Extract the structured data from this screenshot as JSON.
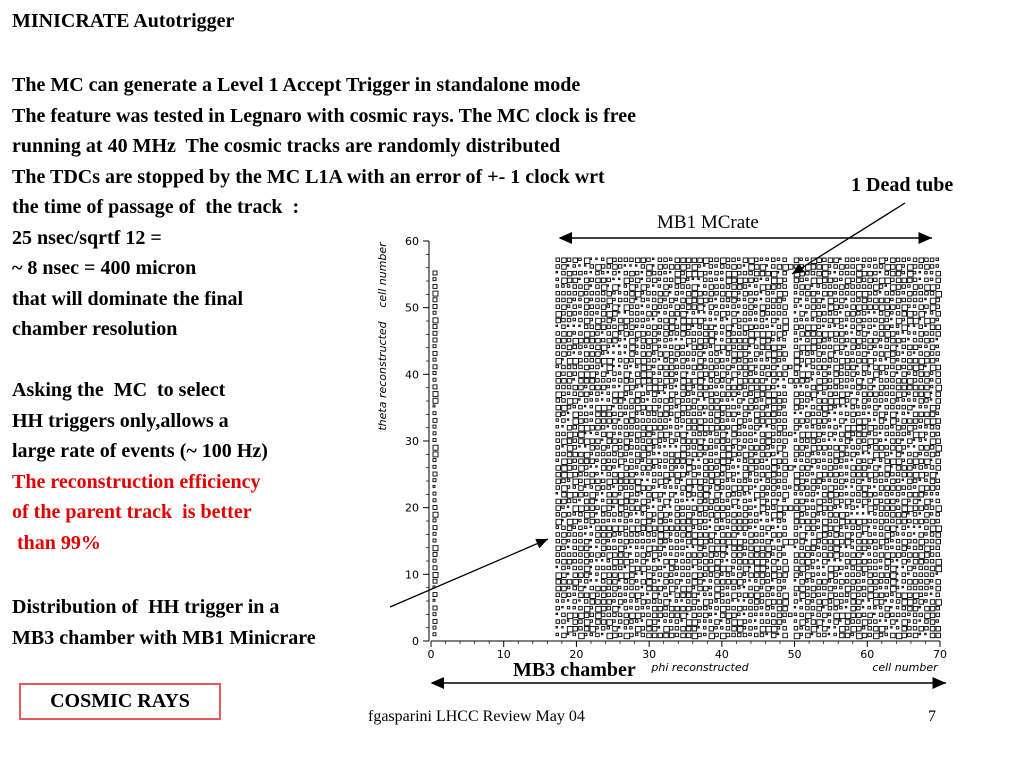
{
  "title": "MINICRATE Autotrigger",
  "body": [
    {
      "text": "The MC can generate a Level 1 Accept Trigger in standalone mode",
      "color": "black"
    },
    {
      "text": "The feature was tested in Legnaro with cosmic rays. The MC clock is free",
      "color": "black"
    },
    {
      "text": "running at 40 MHz  The cosmic tracks are randomly distributed",
      "color": "black"
    },
    {
      "text": "The TDCs are stopped by the MC L1A with an error of +- 1 clock wrt",
      "color": "black"
    },
    {
      "text": "the time of passage of  the track  :",
      "color": "black"
    },
    {
      "text": "25 nsec/sqrtf 12 =",
      "color": "black"
    },
    {
      "text": "~ 8 nsec = 400 micron",
      "color": "black"
    },
    {
      "text": "that will dominate the final",
      "color": "black"
    },
    {
      "text": "chamber resolution",
      "color": "black"
    },
    {
      "text": "",
      "color": "black"
    },
    {
      "text": "Asking the  MC  to select",
      "color": "black"
    },
    {
      "text": "HH triggers only,allows a",
      "color": "black"
    },
    {
      "text": "large rate of events (~ 100 Hz)",
      "color": "black"
    },
    {
      "text": "The reconstruction efficiency",
      "color": "red"
    },
    {
      "text": "of the parent track  is better",
      "color": "red"
    },
    {
      "text": " than 99%",
      "color": "red"
    }
  ],
  "caption": [
    "Distribution of  HH trigger in a",
    "MB3 chamber with MB1 Minicrare"
  ],
  "cosmic_box": "COSMIC RAYS",
  "footer": {
    "author": "fgasparini  LHCC Review May 04",
    "page": "7"
  },
  "callouts": {
    "dead_tube": "1 Dead tube",
    "mb1": "MB1 MCrate",
    "mb3": "MB3 chamber"
  },
  "colors": {
    "red_text": "#e30000",
    "box_border": "#e85a5a"
  },
  "chart_data": {
    "type": "heatmap",
    "title": "",
    "xlabel": "phi reconstructed",
    "xlabel_right": "cell number",
    "ylabel": "theta reconstructed",
    "ylabel_top": "cell number",
    "x_ticks": [
      0,
      10,
      20,
      30,
      40,
      50,
      60,
      70
    ],
    "y_ticks": [
      0,
      10,
      20,
      30,
      40,
      50,
      60
    ],
    "xlim": [
      0,
      70
    ],
    "ylim": [
      0,
      60
    ],
    "populated_x_range": [
      19,
      77
    ],
    "dead_tube_x": 48,
    "left_column_x": 0,
    "grid": false,
    "description_markers": "box size proportional to number of HH triggers per (phi, theta) cell"
  }
}
